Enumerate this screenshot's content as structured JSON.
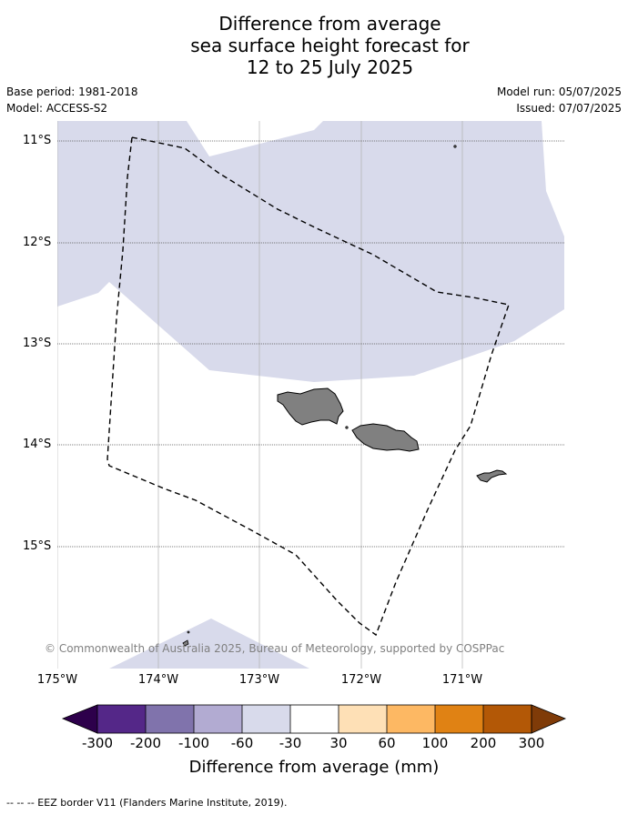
{
  "title_lines": [
    "Difference from average",
    "sea surface height forecast for",
    "12 to 25 July 2025"
  ],
  "base_period": "Base period: 1981-2018",
  "model": "Model: ACCESS-S2",
  "model_run": "Model run: 05/07/2025",
  "issued": "Issued: 07/07/2025",
  "lat_labels": [
    "11°S",
    "12°S",
    "13°S",
    "14°S",
    "15°S"
  ],
  "lon_labels": [
    "175°W",
    "174°W",
    "173°W",
    "172°W",
    "171°W"
  ],
  "copyright": "© Commonwealth of Australia 2025, Bureau of Meteorology, supported by COSPPac",
  "colorbar": {
    "title": "Difference from average (mm)",
    "tick_labels": [
      "-300",
      "-200",
      "-100",
      "-60",
      "-30",
      "30",
      "60",
      "100",
      "200",
      "300"
    ],
    "colors": [
      "#2d004b",
      "#542788",
      "#8073ac",
      "#b2abd2",
      "#d8daeb",
      "#ffffff",
      "#fee0b6",
      "#fdb863",
      "#e08214",
      "#b35806",
      "#7f3b08"
    ]
  },
  "eez_legend": "--  --  -- EEZ border V11 (Flanders Marine Institute, 2019).",
  "colors": {
    "anomaly_fill": "#d8daeb",
    "land": "#808080",
    "grid": "#b0b0b0"
  }
}
